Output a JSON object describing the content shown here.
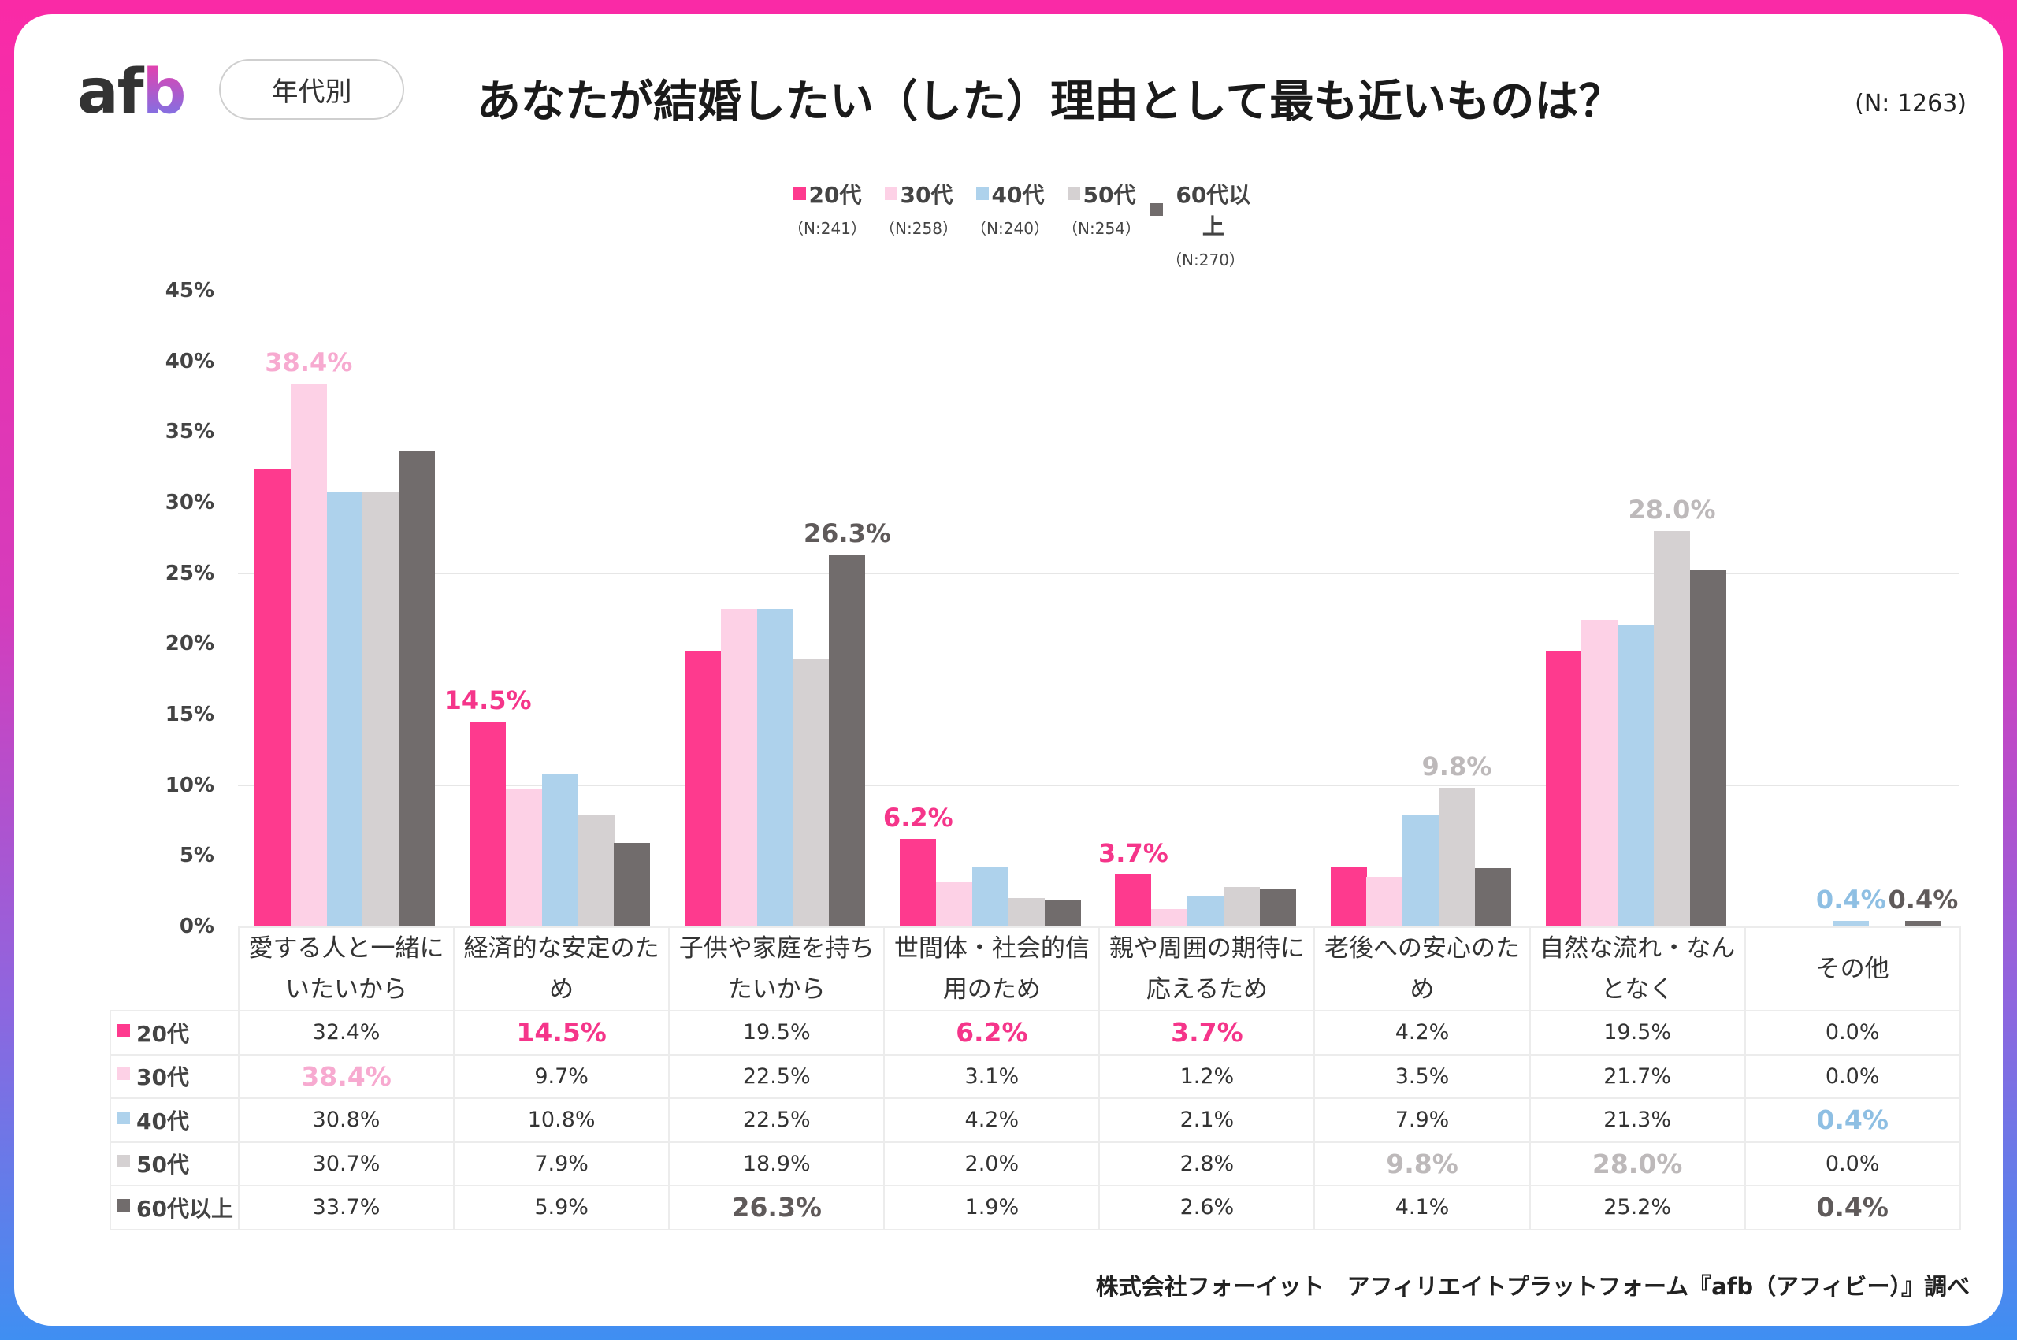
{
  "header": {
    "logo": "afb",
    "tag": "年代別",
    "title": "あなたが結婚したい（した）理由として最も近いものは？",
    "n_total": "(N: 1263)"
  },
  "footer": "株式会社フォーイット　アフィリエイトプラットフォーム『afb（アフィビー）』調べ",
  "chart_data": {
    "type": "bar",
    "title": "あなたが結婚したい（した）理由として最も近いものは？",
    "ylim": [
      0,
      45
    ],
    "yticks": [
      "0%",
      "5%",
      "10%",
      "15%",
      "20%",
      "25%",
      "30%",
      "35%",
      "40%",
      "45%"
    ],
    "grid": true,
    "legend_position": "top",
    "categories": [
      [
        "愛する人と一緒に",
        "いたいから"
      ],
      [
        "経済的な安定のた",
        "め"
      ],
      [
        "子供や家庭を持ち",
        "たいから"
      ],
      [
        "世間体・社会的信",
        "用のため"
      ],
      [
        "親や周囲の期待に",
        "応えるため"
      ],
      [
        "老後への安心のた",
        "め"
      ],
      [
        "自然な流れ・なん",
        "となく"
      ],
      [
        "その他"
      ]
    ],
    "series": [
      {
        "name": "20代",
        "n": "（N:241）",
        "color": "#fe3a8e",
        "label_color": "#f5358a",
        "values": [
          32.4,
          14.5,
          19.5,
          6.2,
          3.7,
          4.2,
          19.5,
          0.0
        ]
      },
      {
        "name": "30代",
        "n": "（N:258）",
        "color": "#fdd1e6",
        "label_color": "#f7aad0",
        "values": [
          38.4,
          9.7,
          22.5,
          3.1,
          1.2,
          3.5,
          21.7,
          0.0
        ]
      },
      {
        "name": "40代",
        "n": "（N:240）",
        "color": "#aed2ec",
        "label_color": "#8ebfe3",
        "values": [
          30.8,
          10.8,
          22.5,
          4.2,
          2.1,
          7.9,
          21.3,
          0.4
        ]
      },
      {
        "name": "50代",
        "n": "（N:254）",
        "color": "#d5d1d2",
        "label_color": "#bdb9ba",
        "values": [
          30.7,
          7.9,
          18.9,
          2.0,
          2.8,
          9.8,
          28.0,
          0.0
        ]
      },
      {
        "name": "60代以上",
        "n": "（N:270）",
        "color": "#716c6c",
        "label_color": "#5f5a5a",
        "values": [
          33.7,
          5.9,
          26.3,
          1.9,
          2.6,
          4.1,
          25.2,
          0.4
        ]
      }
    ],
    "highlights": [
      [
        0,
        1
      ],
      [
        1,
        0
      ],
      [
        2,
        4
      ],
      [
        3,
        0
      ],
      [
        4,
        0
      ],
      [
        5,
        3
      ],
      [
        6,
        3
      ],
      [
        7,
        2
      ],
      [
        7,
        4
      ]
    ],
    "value_labels": [
      [
        "32.4%",
        "14.5%",
        "19.5%",
        "6.2%",
        "3.7%",
        "4.2%",
        "19.5%",
        "0.0%"
      ],
      [
        "38.4%",
        "9.7%",
        "22.5%",
        "3.1%",
        "1.2%",
        "3.5%",
        "21.7%",
        "0.0%"
      ],
      [
        "30.8%",
        "10.8%",
        "22.5%",
        "4.2%",
        "2.1%",
        "7.9%",
        "21.3%",
        "0.4%"
      ],
      [
        "30.7%",
        "7.9%",
        "18.9%",
        "2.0%",
        "2.8%",
        "9.8%",
        "28.0%",
        "0.0%"
      ],
      [
        "33.7%",
        "5.9%",
        "26.3%",
        "1.9%",
        "2.6%",
        "4.1%",
        "25.2%",
        "0.4%"
      ]
    ]
  }
}
